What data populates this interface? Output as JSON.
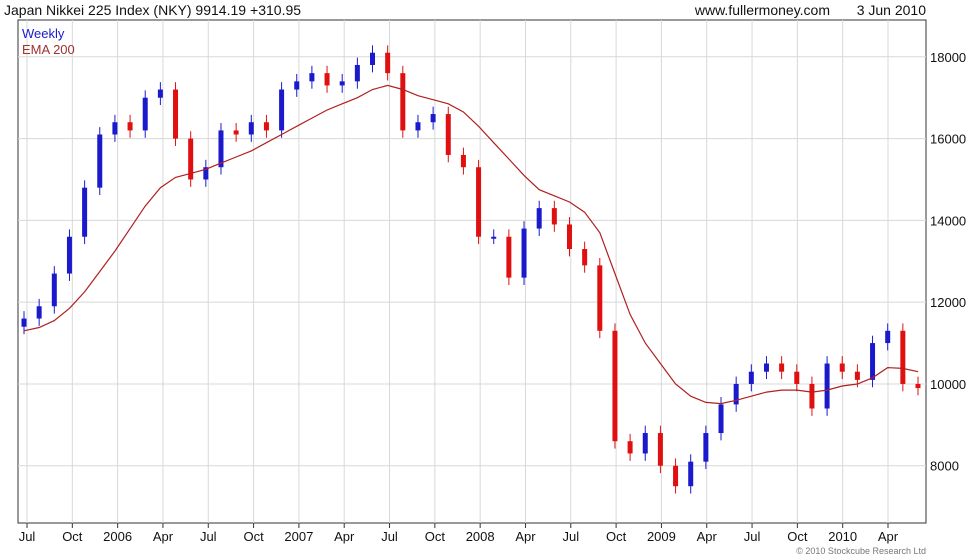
{
  "header": {
    "title": "Japan Nikkei 225 Index (NKY) 9914.19",
    "change": "+310.95",
    "site": "www.fullermoney.com",
    "date": "3 Jun 2010"
  },
  "credit": "© 2010 Stockcube Research Ltd",
  "colors": {
    "up": "#1a1acc",
    "down": "#e01010",
    "ema": "#b02020",
    "grid": "#d8d8d8",
    "weekly_legend": "#1a1acc",
    "ema_legend": "#a03030"
  },
  "chart_data": {
    "type": "candlestick",
    "title": "Japan Nikkei 225 Index (NKY) 9914.19 +310.95",
    "x_tick_labels": [
      "Jul",
      "Oct",
      "2006",
      "Apr",
      "Jul",
      "Oct",
      "2007",
      "Apr",
      "Jul",
      "Oct",
      "2008",
      "Apr",
      "Jul",
      "Oct",
      "2009",
      "Apr",
      "Jul",
      "Oct",
      "2010",
      "Apr"
    ],
    "y_tick_labels": [
      "8000",
      "10000",
      "12000",
      "14000",
      "16000",
      "18000"
    ],
    "y_ticks": [
      8000,
      10000,
      12000,
      14000,
      16000,
      18000
    ],
    "ylim": [
      6600,
      18900
    ],
    "y_axis_side": "right",
    "grid": true,
    "legend_position": "top-left",
    "series": [
      {
        "name": "Weekly",
        "kind": "close",
        "x": [
          "2005-07",
          "2005-08",
          "2005-09",
          "2005-10",
          "2005-11",
          "2005-12",
          "2006-01",
          "2006-02",
          "2006-03",
          "2006-04",
          "2006-05",
          "2006-06",
          "2006-07",
          "2006-08",
          "2006-09",
          "2006-10",
          "2006-11",
          "2006-12",
          "2007-01",
          "2007-02",
          "2007-03",
          "2007-04",
          "2007-05",
          "2007-06",
          "2007-07",
          "2007-08",
          "2007-09",
          "2007-10",
          "2007-11",
          "2007-12",
          "2008-01",
          "2008-02",
          "2008-03",
          "2008-04",
          "2008-05",
          "2008-06",
          "2008-07",
          "2008-08",
          "2008-09",
          "2008-10",
          "2008-11",
          "2008-12",
          "2009-01",
          "2009-02",
          "2009-03",
          "2009-04",
          "2009-05",
          "2009-06",
          "2009-07",
          "2009-08",
          "2009-09",
          "2009-10",
          "2009-11",
          "2009-12",
          "2010-01",
          "2010-02",
          "2010-03",
          "2010-04",
          "2010-05",
          "2010-06"
        ],
        "values": [
          11600,
          11900,
          12700,
          13600,
          14800,
          16100,
          16400,
          16200,
          17000,
          17200,
          16000,
          15000,
          15300,
          16200,
          16100,
          16400,
          16200,
          17200,
          17400,
          17600,
          17300,
          17400,
          17800,
          18100,
          17600,
          16200,
          16400,
          16600,
          15600,
          15300,
          13600,
          13600,
          12600,
          13800,
          14300,
          13900,
          13300,
          12900,
          11300,
          8600,
          8300,
          8800,
          8000,
          7500,
          8100,
          8800,
          9500,
          10000,
          10300,
          10500,
          10300,
          10000,
          9400,
          10500,
          10300,
          10100,
          11000,
          11300,
          10000,
          9900
        ]
      },
      {
        "name": "EMA 200",
        "kind": "line",
        "x": [
          "2005-07",
          "2005-08",
          "2005-09",
          "2005-10",
          "2005-11",
          "2005-12",
          "2006-01",
          "2006-02",
          "2006-03",
          "2006-04",
          "2006-05",
          "2006-06",
          "2006-07",
          "2006-08",
          "2006-09",
          "2006-10",
          "2006-11",
          "2006-12",
          "2007-01",
          "2007-02",
          "2007-03",
          "2007-04",
          "2007-05",
          "2007-06",
          "2007-07",
          "2007-08",
          "2007-09",
          "2007-10",
          "2007-11",
          "2007-12",
          "2008-01",
          "2008-02",
          "2008-03",
          "2008-04",
          "2008-05",
          "2008-06",
          "2008-07",
          "2008-08",
          "2008-09",
          "2008-10",
          "2008-11",
          "2008-12",
          "2009-01",
          "2009-02",
          "2009-03",
          "2009-04",
          "2009-05",
          "2009-06",
          "2009-07",
          "2009-08",
          "2009-09",
          "2009-10",
          "2009-11",
          "2009-12",
          "2010-01",
          "2010-02",
          "2010-03",
          "2010-04",
          "2010-05",
          "2010-06"
        ],
        "values": [
          11300,
          11380,
          11550,
          11850,
          12250,
          12750,
          13250,
          13800,
          14350,
          14800,
          15050,
          15150,
          15250,
          15400,
          15550,
          15700,
          15900,
          16100,
          16300,
          16500,
          16700,
          16850,
          17000,
          17200,
          17300,
          17200,
          17050,
          16950,
          16850,
          16650,
          16300,
          15900,
          15500,
          15100,
          14750,
          14600,
          14450,
          14200,
          13700,
          12700,
          11700,
          11000,
          10500,
          10000,
          9700,
          9550,
          9520,
          9600,
          9700,
          9800,
          9850,
          9850,
          9800,
          9850,
          9950,
          10000,
          10150,
          10400,
          10380,
          10300
        ]
      }
    ]
  }
}
